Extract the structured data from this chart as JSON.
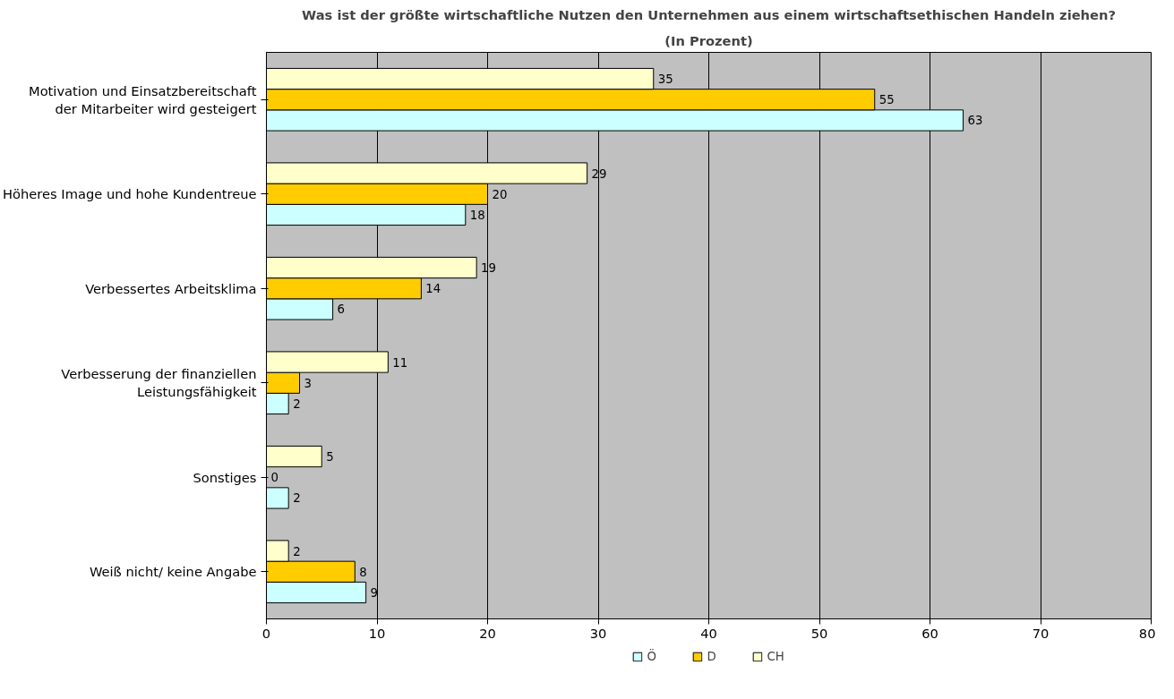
{
  "chart_data": {
    "type": "bar",
    "orientation": "horizontal",
    "title": "Was ist der größte wirtschaftliche Nutzen den Unternehmen aus einem wirtschaftsethischen Handeln ziehen?",
    "subtitle": "(In Prozent)",
    "categories": [
      "Motivation und Einsatzbereitschaft der Mitarbeiter wird gesteigert",
      "Höheres Image und hohe Kundentreue",
      "Verbessertes Arbeitsklima",
      "Verbesserung der finanziellen Leistungsfähigkeit",
      "Sonstiges",
      "Weiß nicht/ keine Angabe"
    ],
    "series": [
      {
        "name": "Ö",
        "color": "#ccffff",
        "values": [
          63,
          18,
          6,
          2,
          2,
          9
        ]
      },
      {
        "name": "D",
        "color": "#ffcc00",
        "values": [
          55,
          20,
          14,
          3,
          0,
          8
        ]
      },
      {
        "name": "CH",
        "color": "#ffffcc",
        "values": [
          35,
          29,
          19,
          11,
          5,
          2
        ]
      }
    ],
    "xlim": [
      0,
      80
    ],
    "xticks": [
      0,
      10,
      20,
      30,
      40,
      50,
      60,
      70,
      80
    ],
    "grid": "x",
    "legend": "bottom",
    "data_labels": true
  }
}
